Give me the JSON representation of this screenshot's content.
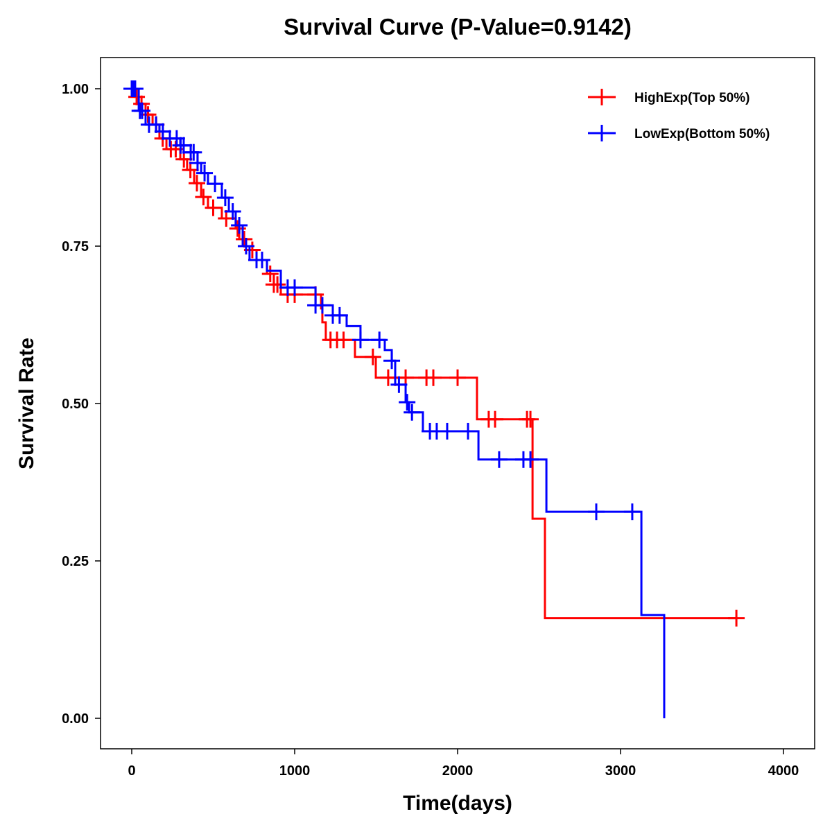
{
  "chart_data": {
    "type": "line",
    "title": "Survival Curve (P-Value=0.9142)",
    "xlabel": "Time(days)",
    "ylabel": "Survival Rate",
    "xlim": [
      -190,
      4190
    ],
    "ylim": [
      -0.05,
      1.05
    ],
    "xticks": [
      0,
      1000,
      2000,
      3000,
      4000
    ],
    "xtick_labels": [
      "0",
      "1000",
      "2000",
      "3000",
      "4000"
    ],
    "yticks": [
      0,
      0.25,
      0.5,
      0.75,
      1
    ],
    "ytick_labels": [
      "0.00",
      "0.25",
      "0.50",
      "0.75",
      "1.00"
    ],
    "legend_position": "top-right",
    "series": [
      {
        "name": "HighExp(Top 50%)",
        "color": "#FF0000",
        "steps": [
          [
            0,
            1.0
          ],
          [
            21,
            0.987
          ],
          [
            43,
            0.976
          ],
          [
            85,
            0.959
          ],
          [
            128,
            0.943
          ],
          [
            170,
            0.921
          ],
          [
            213,
            0.904
          ],
          [
            298,
            0.888
          ],
          [
            340,
            0.871
          ],
          [
            383,
            0.85
          ],
          [
            426,
            0.828
          ],
          [
            468,
            0.811
          ],
          [
            553,
            0.794
          ],
          [
            638,
            0.778
          ],
          [
            660,
            0.761
          ],
          [
            702,
            0.744
          ],
          [
            766,
            0.728
          ],
          [
            830,
            0.706
          ],
          [
            872,
            0.689
          ],
          [
            915,
            0.673
          ],
          [
            1162,
            0.651
          ],
          [
            1170,
            0.629
          ],
          [
            1191,
            0.601
          ],
          [
            1370,
            0.574
          ],
          [
            1498,
            0.541
          ],
          [
            2119,
            0.475
          ],
          [
            2460,
            0.317
          ],
          [
            2536,
            0.159
          ]
        ],
        "end_time": 3711,
        "censored": [
          5,
          30,
          60,
          100,
          150,
          190,
          240,
          270,
          320,
          360,
          400,
          440,
          500,
          580,
          650,
          690,
          740,
          850,
          872,
          894,
          957,
          1000,
          1128,
          1220,
          1260,
          1300,
          1480,
          1574,
          1617,
          1681,
          1809,
          1851,
          2000,
          2191,
          2230,
          2426,
          2447,
          3711
        ]
      },
      {
        "name": "LowExp(Bottom 50%)",
        "color": "#0000FF",
        "steps": [
          [
            0,
            1.0
          ],
          [
            43,
            0.965
          ],
          [
            85,
            0.943
          ],
          [
            170,
            0.932
          ],
          [
            234,
            0.921
          ],
          [
            298,
            0.91
          ],
          [
            362,
            0.899
          ],
          [
            404,
            0.882
          ],
          [
            426,
            0.866
          ],
          [
            468,
            0.849
          ],
          [
            553,
            0.827
          ],
          [
            596,
            0.805
          ],
          [
            638,
            0.783
          ],
          [
            681,
            0.75
          ],
          [
            723,
            0.728
          ],
          [
            830,
            0.711
          ],
          [
            915,
            0.684
          ],
          [
            1128,
            0.656
          ],
          [
            1234,
            0.64
          ],
          [
            1319,
            0.623
          ],
          [
            1404,
            0.601
          ],
          [
            1553,
            0.585
          ],
          [
            1596,
            0.568
          ],
          [
            1617,
            0.53
          ],
          [
            1681,
            0.502
          ],
          [
            1702,
            0.486
          ],
          [
            1787,
            0.456
          ],
          [
            2128,
            0.411
          ],
          [
            2545,
            0.328
          ],
          [
            3128,
            0.164
          ],
          [
            3268,
            0.0
          ]
        ],
        "end_time": 3268,
        "censored": [
          0,
          10,
          21,
          50,
          64,
          106,
          149,
          191,
          234,
          276,
          300,
          319,
          362,
          380,
          404,
          447,
          511,
          574,
          620,
          660,
          702,
          766,
          800,
          957,
          1000,
          1128,
          1170,
          1234,
          1276,
          1404,
          1520,
          1596,
          1640,
          1690,
          1720,
          1830,
          1872,
          1936,
          2064,
          2255,
          2404,
          2447,
          2851,
          3072
        ]
      }
    ]
  }
}
